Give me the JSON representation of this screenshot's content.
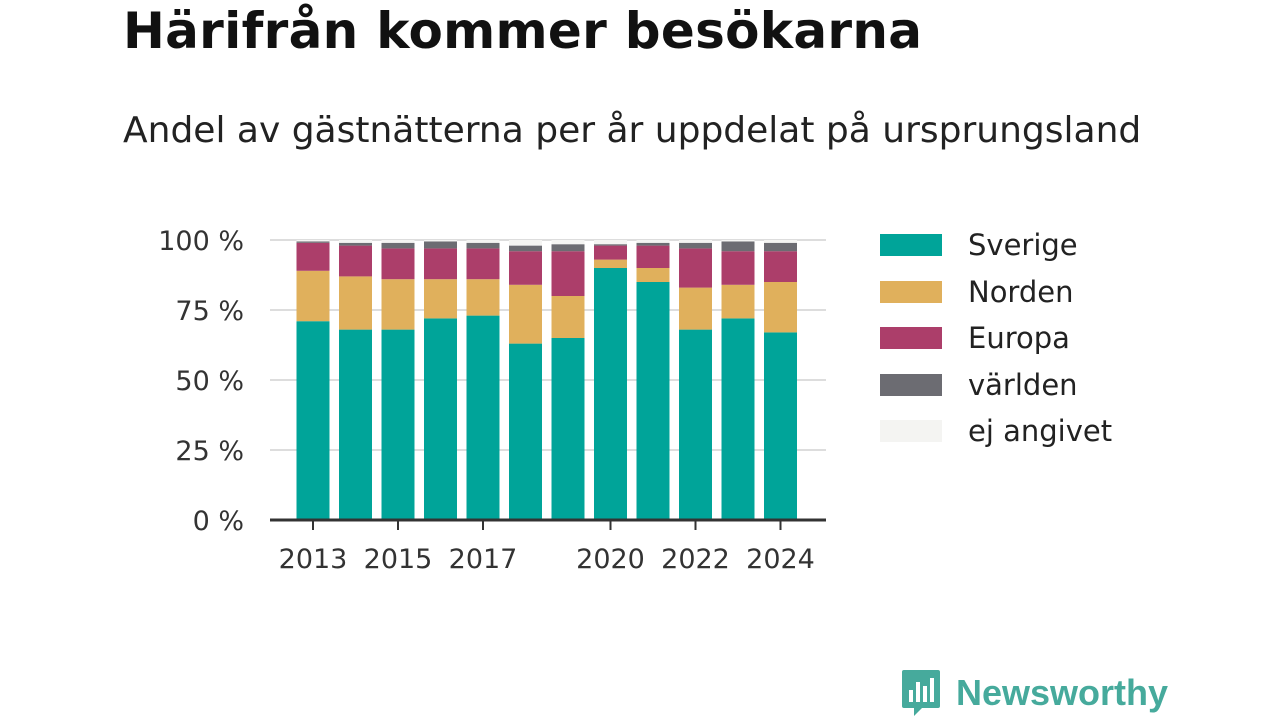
{
  "title": "Härifrån kommer besökarna",
  "subtitle": "Andel av gästnätterna per år uppdelat på ursprungsland",
  "brand": {
    "name": "Newsworthy",
    "icon": "newsworthy-logo-icon",
    "color": "#46aa9c"
  },
  "chart_data": {
    "type": "bar",
    "stacked": true,
    "categories": [
      "2013",
      "2014",
      "2015",
      "2016",
      "2017",
      "2018",
      "2019",
      "2020",
      "2021",
      "2022",
      "2023",
      "2024"
    ],
    "x_tick_labels": [
      "2013",
      "2015",
      "2017",
      "2020",
      "2022",
      "2024"
    ],
    "y_ticks": [
      "0 %",
      "25 %",
      "50 %",
      "75 %",
      "100 %"
    ],
    "ylim": [
      0,
      100
    ],
    "grid": true,
    "legend_position": "right",
    "series": [
      {
        "name": "Sverige",
        "color": "#00a499",
        "values": [
          71,
          68,
          68,
          72,
          73,
          63,
          65,
          90,
          85,
          68,
          72,
          67
        ]
      },
      {
        "name": "Norden",
        "color": "#e0b05c",
        "values": [
          18,
          19,
          18,
          14,
          13,
          21,
          15,
          3,
          5,
          15,
          12,
          18
        ]
      },
      {
        "name": "Europa",
        "color": "#ac3e6a",
        "values": [
          10,
          11,
          11,
          11,
          11,
          12,
          16,
          5,
          8,
          14,
          12,
          11
        ]
      },
      {
        "name": "världen",
        "color": "#6c6c72",
        "values": [
          0.5,
          1,
          2,
          2.5,
          2,
          2,
          2.5,
          0.5,
          1,
          2,
          3.5,
          3
        ]
      },
      {
        "name": "ej angivet",
        "color": "#f4f4f2",
        "values": [
          0.5,
          1,
          1,
          0.5,
          1,
          2,
          1.5,
          1.5,
          1,
          1,
          0.5,
          1
        ]
      }
    ]
  }
}
